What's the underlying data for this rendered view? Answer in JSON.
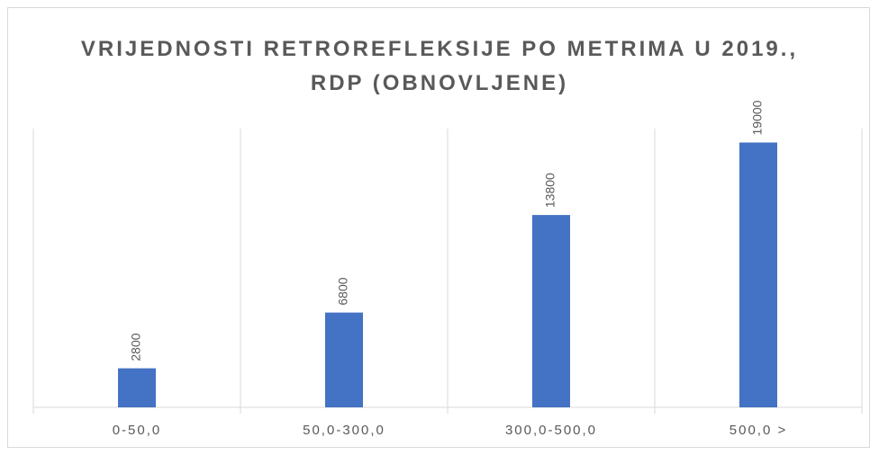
{
  "chart_data": {
    "type": "bar",
    "title": "VRIJEDNOSTI RETROREFLEKSIJE PO METRIMA U 2019., RDP (OBNOVLJENE)",
    "categories": [
      "0-50,0",
      "50,0-300,0",
      "300,0-500,0",
      "500,0 >"
    ],
    "values": [
      2800,
      6800,
      13800,
      19000
    ],
    "color": "#4472c4",
    "ylim": [
      0,
      20000
    ]
  }
}
